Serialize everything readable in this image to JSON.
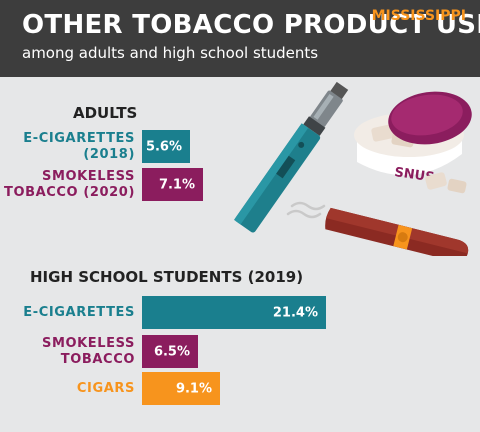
{
  "header": {
    "title": "OTHER TOBACCO PRODUCT USE",
    "subtitle": "among adults and high school students",
    "state": "MISSISSIPPI"
  },
  "colors": {
    "teal": "#1a7f8e",
    "maroon": "#8b1d5e",
    "orange": "#f7941d",
    "header_bg": "#3d3d3d"
  },
  "illustration": {
    "snus_label": "SNUS"
  },
  "chart_data": [
    {
      "type": "bar",
      "orientation": "horizontal",
      "title": "ADULTS",
      "categories": [
        "E-CIGARETTES (2018)",
        "SMOKELESS TOBACCO (2020)"
      ],
      "category_lines": [
        [
          "E-CIGARETTES",
          "(2018)"
        ],
        [
          "SMOKELESS",
          "TOBACCO (2020)"
        ]
      ],
      "values": [
        5.6,
        7.1
      ],
      "value_labels": [
        "5.6%",
        "7.1%"
      ],
      "colors": [
        "#1a7f8e",
        "#8b1d5e"
      ],
      "xlim": [
        0,
        100
      ],
      "unit": "%",
      "grid": false
    },
    {
      "type": "bar",
      "orientation": "horizontal",
      "title": "HIGH SCHOOL STUDENTS (2019)",
      "categories": [
        "E-CIGARETTES",
        "SMOKELESS TOBACCO",
        "CIGARS"
      ],
      "category_lines": [
        [
          "E-CIGARETTES"
        ],
        [
          "SMOKELESS",
          "TOBACCO"
        ],
        [
          "CIGARS"
        ]
      ],
      "values": [
        21.4,
        6.5,
        9.1
      ],
      "value_labels": [
        "21.4%",
        "6.5%",
        "9.1%"
      ],
      "colors": [
        "#1a7f8e",
        "#8b1d5e",
        "#f7941d"
      ],
      "xlim": [
        0,
        100
      ],
      "unit": "%",
      "grid": false
    }
  ]
}
